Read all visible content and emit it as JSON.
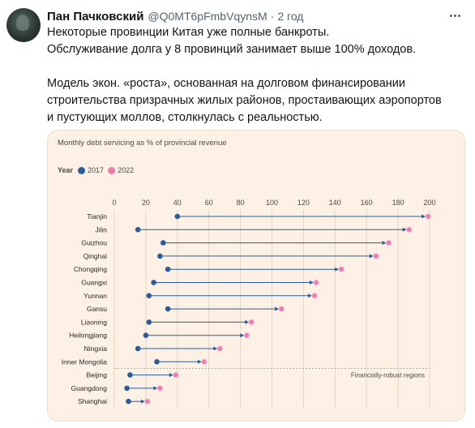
{
  "tweet": {
    "author_name": "Пан Пачковский",
    "handle": "@Q0MT6pFmbVqynsM",
    "separator": "·",
    "time": "2 год",
    "lines": [
      "Некоторые провинции Китая уже полные банкроты.",
      "Обслуживание долга у 8 провинций занимает выше 100% доходов.",
      "Модель экон. «роста», основанная на долговом финансировании",
      "строительства призрачных жилых районов, простаивающих аэропортов",
      "и пустующих моллов, столкнулась с реальностью."
    ]
  },
  "chart_data": {
    "type": "dumbbell",
    "title": "Monthly debt servicing as % of provincial revenue",
    "legend_title": "Year",
    "series": [
      {
        "name": "2017",
        "color": "#2a5b9e"
      },
      {
        "name": "2022",
        "color": "#f07bab"
      }
    ],
    "xlim": [
      0,
      200
    ],
    "x_ticks": [
      "0",
      "20",
      "40",
      "60",
      "80",
      "100",
      "120",
      "140",
      "160",
      "180",
      "200"
    ],
    "categories": [
      "Tianjin",
      "Jilin",
      "Guizhou",
      "Qinghai",
      "Chongqing",
      "Guangxi",
      "Yunnan",
      "Gansu",
      "Liaoning",
      "Heilongjiang",
      "Ningxia",
      "Inner Mongolia",
      "Beijing",
      "Guangdong",
      "Shanghai"
    ],
    "values_2017": [
      40,
      15,
      31,
      29,
      34,
      25,
      22,
      34,
      22,
      20,
      15,
      27,
      10,
      8,
      9
    ],
    "values_2022": [
      199,
      187,
      174,
      166,
      144,
      128,
      127,
      106,
      87,
      84,
      67,
      57,
      39,
      29,
      21
    ],
    "annotation": "Financially-robust regions",
    "grid": true
  }
}
